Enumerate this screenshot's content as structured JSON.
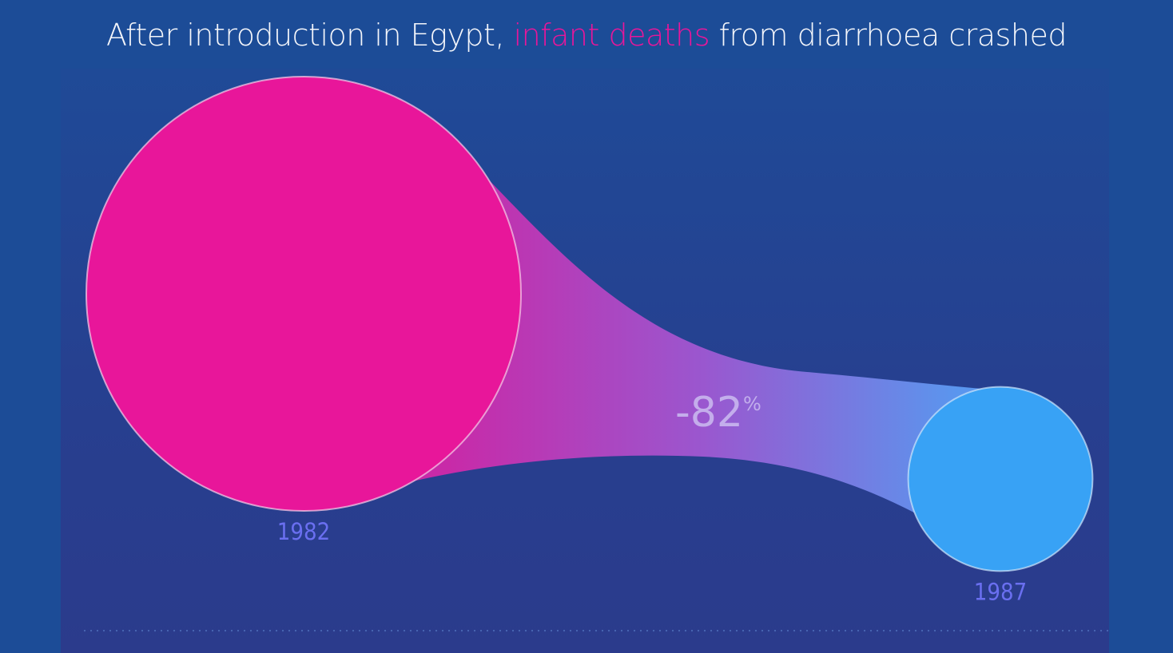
{
  "title": {
    "before": "After introduction in Egypt, ",
    "highlight": "infant deaths",
    "after": " from diarrhoea crashed"
  },
  "colors": {
    "background": "#1c4c97",
    "highlight": "#e8169a",
    "start_bubble": "#e8169a",
    "end_bubble": "#38a2f5",
    "year_label": "#6a6ff0",
    "change_label": "#c9b7ef"
  },
  "chart_data": {
    "type": "bubble-comparison",
    "categories": [
      "1982",
      "1987"
    ],
    "values": [
      100,
      18
    ],
    "change_label": {
      "number": "-82",
      "unit": "%"
    }
  }
}
